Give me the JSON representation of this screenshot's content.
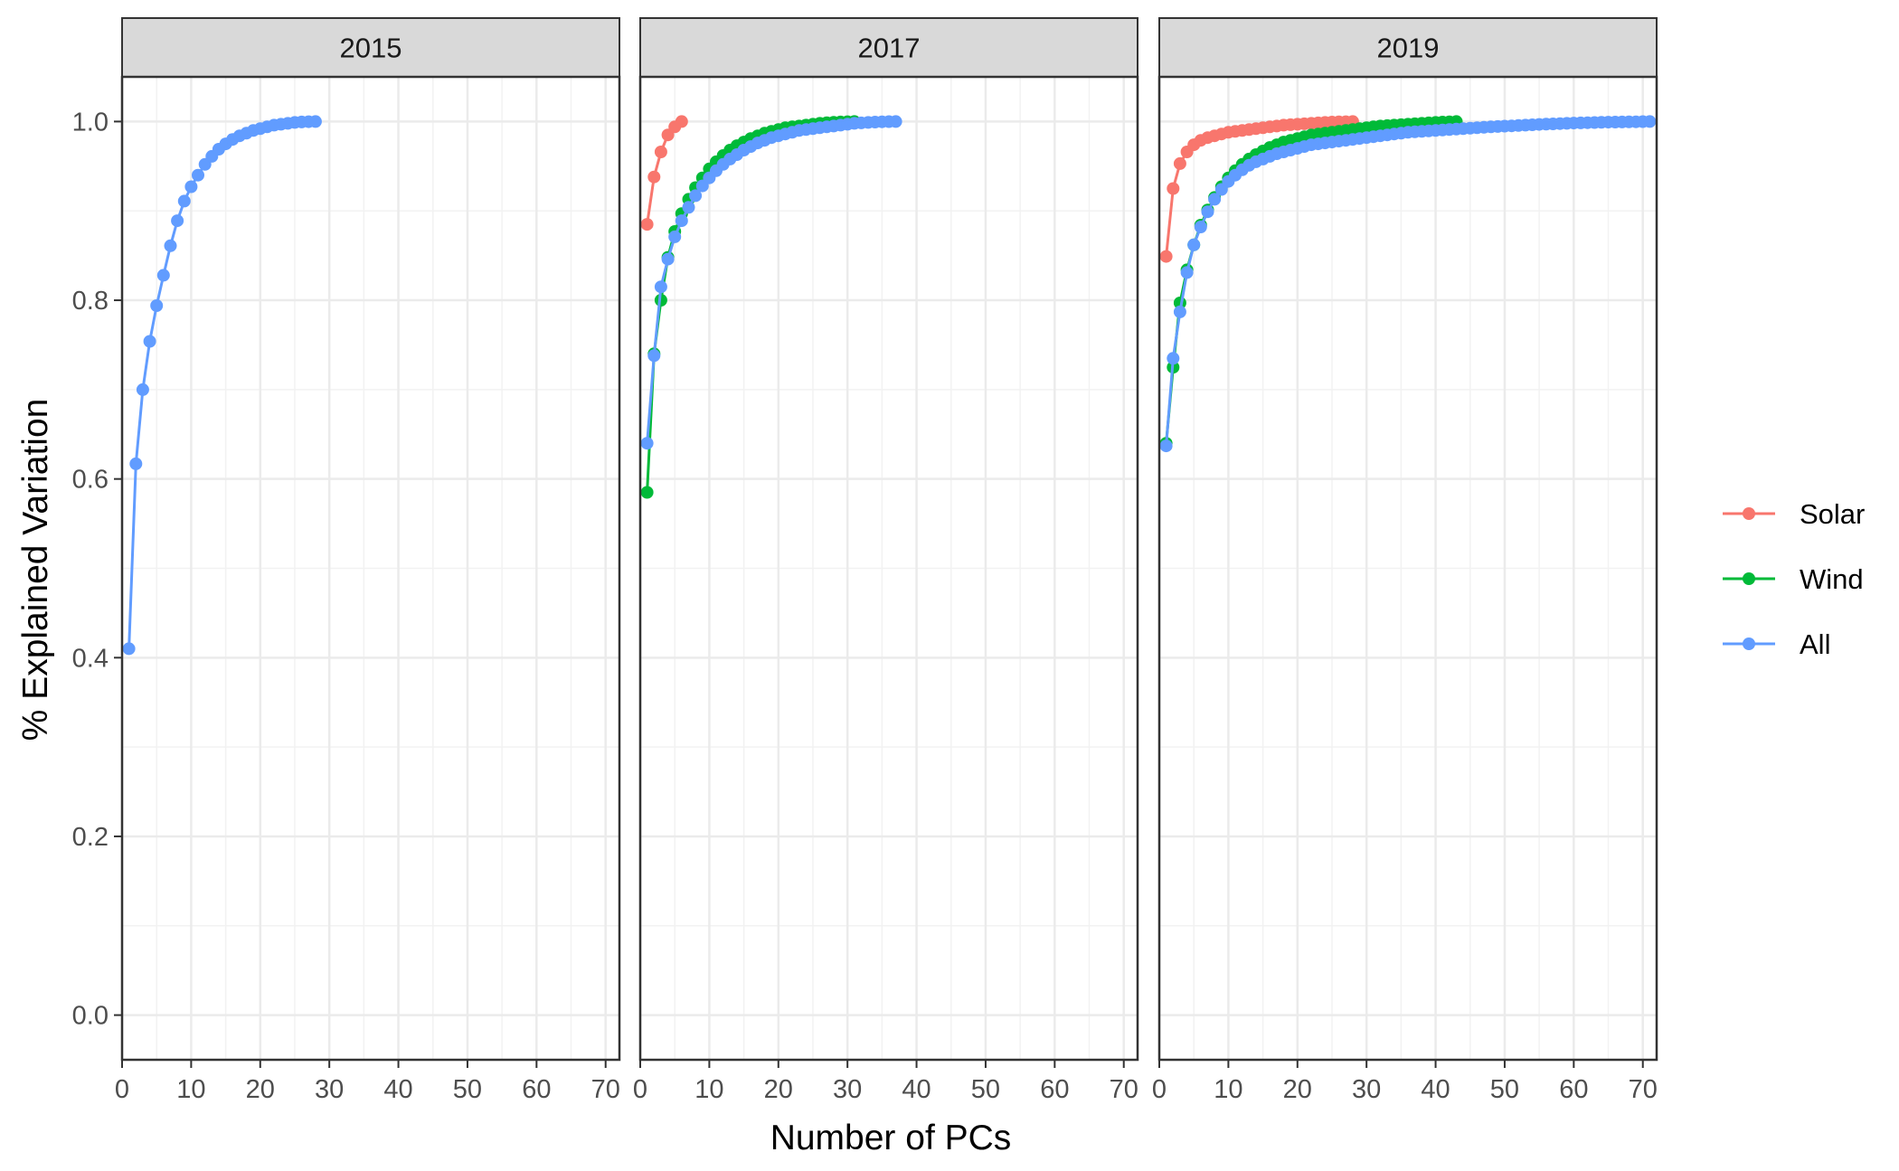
{
  "chart_data": {
    "type": "line",
    "xlabel": "Number of PCs",
    "ylabel": "% Explained Variation",
    "xlim": [
      0,
      72
    ],
    "ylim": [
      -0.05,
      1.05
    ],
    "xticks": [
      0,
      10,
      20,
      30,
      40,
      50,
      60,
      70
    ],
    "xtick_labels": [
      "0",
      "10",
      "20",
      "30",
      "40",
      "50",
      "60",
      "70"
    ],
    "yticks": [
      0.0,
      0.2,
      0.4,
      0.6,
      0.8,
      1.0
    ],
    "ytick_labels": [
      "0.0",
      "0.2",
      "0.4",
      "0.6",
      "0.8",
      "1.0"
    ],
    "grid": true,
    "markers": true,
    "legend_position": "right",
    "legend": [
      {
        "name": "Solar",
        "color": "#F8766D"
      },
      {
        "name": "Wind",
        "color": "#00BA38"
      },
      {
        "name": "All",
        "color": "#619CFF"
      }
    ],
    "facets": [
      {
        "label": "2015",
        "series": [
          {
            "name": "All",
            "color": "#619CFF",
            "n": 28,
            "y": [
              0.41,
              0.617,
              0.7,
              0.754,
              0.794,
              0.828,
              0.861,
              0.889,
              0.911,
              0.927,
              0.94,
              0.952,
              0.961,
              0.969,
              0.975,
              0.98,
              0.984,
              0.987,
              0.99,
              0.992,
              0.994,
              0.996,
              0.997,
              0.998,
              0.999,
              0.9995,
              0.9998,
              1.0
            ]
          }
        ]
      },
      {
        "label": "2017",
        "series": [
          {
            "name": "Solar",
            "color": "#F8766D",
            "n": 6,
            "y": [
              0.885,
              0.938,
              0.966,
              0.985,
              0.994,
              1.0
            ]
          },
          {
            "name": "Wind",
            "color": "#00BA38",
            "n": 31,
            "y": [
              0.585,
              0.74,
              0.8,
              0.848,
              0.877,
              0.897,
              0.913,
              0.926,
              0.937,
              0.947,
              0.955,
              0.962,
              0.968,
              0.973,
              0.977,
              0.981,
              0.984,
              0.987,
              0.989,
              0.991,
              0.993,
              0.994,
              0.995,
              0.996,
              0.997,
              0.998,
              0.9986,
              0.9991,
              0.9995,
              0.9998,
              1.0
            ]
          },
          {
            "name": "All",
            "color": "#619CFF",
            "n": 37,
            "y": [
              0.64,
              0.738,
              0.815,
              0.846,
              0.871,
              0.889,
              0.904,
              0.917,
              0.928,
              0.937,
              0.945,
              0.952,
              0.958,
              0.963,
              0.968,
              0.972,
              0.976,
              0.979,
              0.982,
              0.984,
              0.986,
              0.988,
              0.99,
              0.991,
              0.992,
              0.993,
              0.994,
              0.995,
              0.996,
              0.997,
              0.998,
              0.9985,
              0.999,
              0.9994,
              0.9997,
              0.9999,
              1.0
            ]
          }
        ]
      },
      {
        "label": "2019",
        "series": [
          {
            "name": "Solar",
            "color": "#F8766D",
            "n": 28,
            "y": [
              0.849,
              0.925,
              0.953,
              0.966,
              0.974,
              0.979,
              0.982,
              0.984,
              0.986,
              0.988,
              0.989,
              0.99,
              0.991,
              0.992,
              0.993,
              0.994,
              0.995,
              0.996,
              0.9965,
              0.997,
              0.9975,
              0.998,
              0.9985,
              0.999,
              0.9994,
              0.9996,
              0.9998,
              1.0
            ]
          },
          {
            "name": "Wind",
            "color": "#00BA38",
            "n": 43,
            "y": [
              0.64,
              0.725,
              0.797,
              0.834,
              0.862,
              0.884,
              0.901,
              0.915,
              0.927,
              0.937,
              0.945,
              0.952,
              0.958,
              0.963,
              0.967,
              0.971,
              0.974,
              0.977,
              0.979,
              0.981,
              0.983,
              0.985,
              0.986,
              0.987,
              0.988,
              0.989,
              0.99,
              0.991,
              0.992,
              0.993,
              0.994,
              0.995,
              0.9955,
              0.996,
              0.9965,
              0.997,
              0.9975,
              0.998,
              0.9985,
              0.999,
              0.9994,
              0.9997,
              1.0
            ]
          },
          {
            "name": "All",
            "color": "#619CFF",
            "n": 71,
            "y": [
              0.637,
              0.735,
              0.787,
              0.831,
              0.862,
              0.882,
              0.899,
              0.913,
              0.924,
              0.933,
              0.94,
              0.946,
              0.951,
              0.955,
              0.958,
              0.961,
              0.964,
              0.966,
              0.968,
              0.97,
              0.972,
              0.974,
              0.975,
              0.976,
              0.977,
              0.978,
              0.979,
              0.98,
              0.981,
              0.982,
              0.983,
              0.984,
              0.985,
              0.986,
              0.987,
              0.988,
              0.9885,
              0.989,
              0.9895,
              0.99,
              0.9905,
              0.991,
              0.9915,
              0.992,
              0.9925,
              0.993,
              0.9935,
              0.994,
              0.9944,
              0.9948,
              0.9952,
              0.9956,
              0.996,
              0.9964,
              0.9968,
              0.9971,
              0.9974,
              0.9977,
              0.998,
              0.9983,
              0.9985,
              0.9987,
              0.9989,
              0.9991,
              0.9993,
              0.9994,
              0.9995,
              0.9996,
              0.9997,
              0.9999,
              1.0
            ]
          }
        ]
      }
    ]
  }
}
